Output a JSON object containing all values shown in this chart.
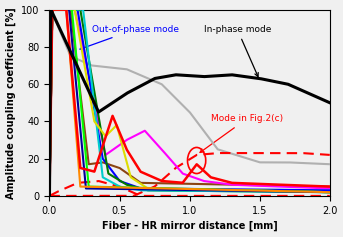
{
  "xlabel": "Fiber - HR mirror distance [mm]",
  "ylabel": "Amplitude coupling coefficient [%]",
  "xlim": [
    0,
    2
  ],
  "ylim": [
    0,
    100
  ],
  "xticks": [
    0,
    0.5,
    1,
    1.5,
    2
  ],
  "yticks": [
    0,
    20,
    40,
    60,
    80,
    100
  ],
  "annotation_out_of_phase": "Out-of-phase mode",
  "annotation_in_phase": "In-phase mode",
  "annotation_fig2c": "Mode in Fig.2(c)"
}
